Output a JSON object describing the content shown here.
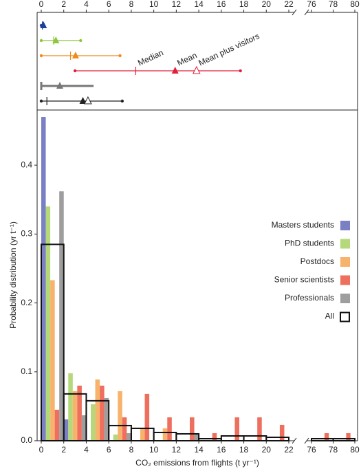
{
  "chart_data": {
    "type": "histogram",
    "xlabel": "CO₂ emissions from flights (t yr⁻¹)",
    "ylabel": "Probability distribution (yr t⁻¹)",
    "bins": [
      0,
      2,
      4,
      6,
      8,
      10,
      12,
      14,
      16,
      18,
      20,
      22
    ],
    "bins2": [
      76,
      78,
      80
    ],
    "xlim": [
      0,
      22
    ],
    "xlim2": [
      76,
      80
    ],
    "xticks": [
      0,
      2,
      4,
      6,
      8,
      10,
      12,
      14,
      16,
      18,
      20,
      22
    ],
    "xticks2": [
      76,
      78,
      80
    ],
    "ylim": [
      0,
      0.48
    ],
    "yticks": [
      {
        "value": 0,
        "label": "0.0"
      },
      0.1,
      0.2,
      0.3,
      0.4
    ],
    "annotations": [
      "Median",
      "Mean",
      "Mean plus visitors"
    ],
    "series": [
      {
        "name": "Masters students",
        "color": "#7b7fc4",
        "summary_color": "#1f3f99",
        "values": [
          0.47,
          0.031,
          0,
          0,
          0,
          0,
          0,
          0,
          0,
          0,
          0
        ],
        "values2": [
          0,
          0
        ],
        "summary": {
          "min": 0,
          "max": 0.2,
          "median": 0.1,
          "mean": 0.2
        }
      },
      {
        "name": "PhD students",
        "color": "#b5d87a",
        "summary_color": "#8dc63f",
        "values": [
          0.34,
          0.098,
          0.053,
          0.009,
          0,
          0,
          0,
          0,
          0,
          0,
          0
        ],
        "values2": [
          0,
          0
        ],
        "summary": {
          "min": 0,
          "max": 3.5,
          "median": 1.1,
          "mean": 1.3
        }
      },
      {
        "name": "Postdocs",
        "color": "#f7b36b",
        "summary_color": "#f08a1c",
        "values": [
          0.233,
          0.072,
          0.089,
          0.072,
          0.018,
          0.018,
          0,
          0,
          0,
          0,
          0
        ],
        "values2": [
          0,
          0
        ],
        "summary": {
          "min": 0,
          "max": 7.0,
          "median": 2.6,
          "mean": 3.05
        }
      },
      {
        "name": "Senior scientists",
        "color": "#ef6f5e",
        "summary_color": "#e0203a",
        "values": [
          0.045,
          0.08,
          0.08,
          0.034,
          0.068,
          0.034,
          0.034,
          0.011,
          0.034,
          0.034,
          0.023
        ],
        "values2": [
          0.011,
          0.011
        ],
        "summary": {
          "min": 3.0,
          "max": 17.7,
          "median": 8.4,
          "mean": 11.9,
          "mean_visitors": 13.8
        }
      },
      {
        "name": "Professionals",
        "color": "#9e9e9e",
        "summary_color": "#777777",
        "values": [
          0.362,
          0.037,
          0.062,
          0.011,
          0,
          0,
          0.011,
          0,
          0,
          0,
          0
        ],
        "values2": [
          0,
          0
        ],
        "summary": {
          "min": 0,
          "max": 4.65,
          "median": 0,
          "mean": 1.65
        }
      },
      {
        "name": "All",
        "color": "#111111",
        "summary_color": "#222222",
        "outline": true,
        "values": [
          0.285,
          0.068,
          0.058,
          0.022,
          0.018,
          0.012,
          0.01,
          0.003,
          0.007,
          0.007,
          0.005
        ],
        "values2": [
          0.003,
          0.003
        ],
        "summary": {
          "min": 0,
          "max": 7.2,
          "median": 0.5,
          "mean": 3.7,
          "mean_visitors": 4.15
        }
      }
    ]
  }
}
